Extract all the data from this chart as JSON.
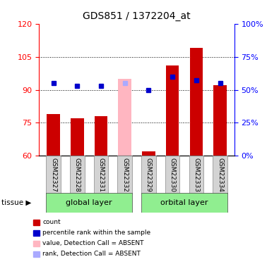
{
  "title": "GDS851 / 1372204_at",
  "samples": [
    "GSM22327",
    "GSM22328",
    "GSM22331",
    "GSM22332",
    "GSM22329",
    "GSM22330",
    "GSM22333",
    "GSM22334"
  ],
  "bar_values": [
    79,
    77,
    78,
    null,
    62,
    101,
    109,
    92
  ],
  "bar_absent_values": [
    null,
    null,
    null,
    95,
    null,
    null,
    null,
    null
  ],
  "rank_values": [
    55,
    53,
    53,
    null,
    50,
    60,
    57,
    55
  ],
  "rank_absent_values": [
    null,
    null,
    null,
    55,
    null,
    null,
    null,
    null
  ],
  "bar_color": "#cc0000",
  "bar_absent_color": "#ffb6c1",
  "rank_color": "#0000cc",
  "rank_absent_color": "#aaaaff",
  "ylim_left": [
    60,
    120
  ],
  "ylim_right": [
    0,
    100
  ],
  "yticks_left": [
    60,
    75,
    90,
    105,
    120
  ],
  "yticks_right": [
    0,
    25,
    50,
    75,
    100
  ],
  "ytick_labels_right": [
    "0%",
    "25%",
    "50%",
    "75%",
    "100%"
  ],
  "hlines": [
    75,
    90,
    105
  ],
  "group_defs": [
    {
      "start": 0,
      "end": 3,
      "label": "global layer"
    },
    {
      "start": 4,
      "end": 7,
      "label": "orbital layer"
    }
  ],
  "tissue_label": "tissue",
  "legend_items": [
    {
      "color": "#cc0000",
      "label": "count"
    },
    {
      "color": "#0000cc",
      "label": "percentile rank within the sample"
    },
    {
      "color": "#ffb6c1",
      "label": "value, Detection Call = ABSENT"
    },
    {
      "color": "#aaaaff",
      "label": "rank, Detection Call = ABSENT"
    }
  ],
  "sample_box_color": "#d3d3d3",
  "group_box_color": "#90ee90",
  "bar_width": 0.55
}
